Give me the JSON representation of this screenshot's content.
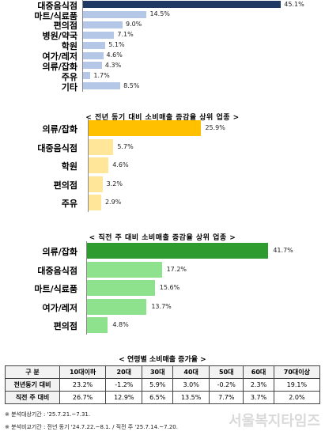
{
  "chart_data": [
    {
      "type": "bar",
      "orientation": "horizontal",
      "title": "",
      "categories": [
        "대중음식점",
        "마트/식료품",
        "편의점",
        "병원/약국",
        "학원",
        "여가/레저",
        "의류/잡화",
        "주유",
        "기타"
      ],
      "values": [
        45.1,
        14.5,
        9.0,
        7.1,
        5.1,
        4.6,
        4.3,
        1.7,
        8.5
      ],
      "value_labels": [
        "45.1%",
        "14.5%",
        "9.0%",
        "7.1%",
        "5.1%",
        "4.6%",
        "4.3%",
        "1.7%",
        "8.5%"
      ],
      "colors": [
        "#1f3864",
        "#b4c7e7",
        "#b4c7e7",
        "#b4c7e7",
        "#b4c7e7",
        "#b4c7e7",
        "#b4c7e7",
        "#b4c7e7",
        "#b4c7e7"
      ]
    },
    {
      "type": "bar",
      "orientation": "horizontal",
      "title": "< 전년 동기 대비 소비매출 증감율 상위 업종 >",
      "categories": [
        "의류/잡화",
        "대중음식점",
        "학원",
        "편의점",
        "주유"
      ],
      "values": [
        25.9,
        5.7,
        4.6,
        3.2,
        2.9
      ],
      "value_labels": [
        "25.9%",
        "5.7%",
        "4.6%",
        "3.2%",
        "2.9%"
      ],
      "colors": [
        "#ffc000",
        "#ffe699",
        "#ffe699",
        "#ffe699",
        "#ffe699"
      ]
    },
    {
      "type": "bar",
      "orientation": "horizontal",
      "title": "< 직전 주 대비 소비매출 증감율 상위 업종 >",
      "categories": [
        "의류/잡화",
        "대중음식점",
        "마트/식료품",
        "여가/레저",
        "편의점"
      ],
      "values": [
        41.7,
        17.2,
        15.6,
        13.7,
        4.8
      ],
      "value_labels": [
        "41.7%",
        "17.2%",
        "15.6%",
        "13.7%",
        "4.8%"
      ],
      "colors": [
        "#2e9b2e",
        "#8ee28e",
        "#8ee28e",
        "#8ee28e",
        "#8ee28e"
      ]
    }
  ],
  "table": {
    "title": "< 연령별 소비매출 증가율 >",
    "headers": [
      "구 분",
      "10대이하",
      "20대",
      "30대",
      "40대",
      "50대",
      "60대",
      "70대이상"
    ],
    "rows": [
      {
        "label": "전년동기 대비",
        "values": [
          "23.2%",
          "-1.2%",
          "5.9%",
          "3.0%",
          "-0.2%",
          "2.3%",
          "19.1%"
        ]
      },
      {
        "label": "직전 주 대비",
        "values": [
          "26.7%",
          "12.9%",
          "6.5%",
          "13.5%",
          "7.7%",
          "3.7%",
          "2.0%"
        ]
      }
    ]
  },
  "notes": [
    "※ 분석대상기간 : '25.7.21.~7.31.",
    "※ 분석비교기간 : 전년 동기 '24.7.22.~8.1. / 직전 주 '25.7.14.~7.20."
  ],
  "watermark": "서울복지타임즈"
}
